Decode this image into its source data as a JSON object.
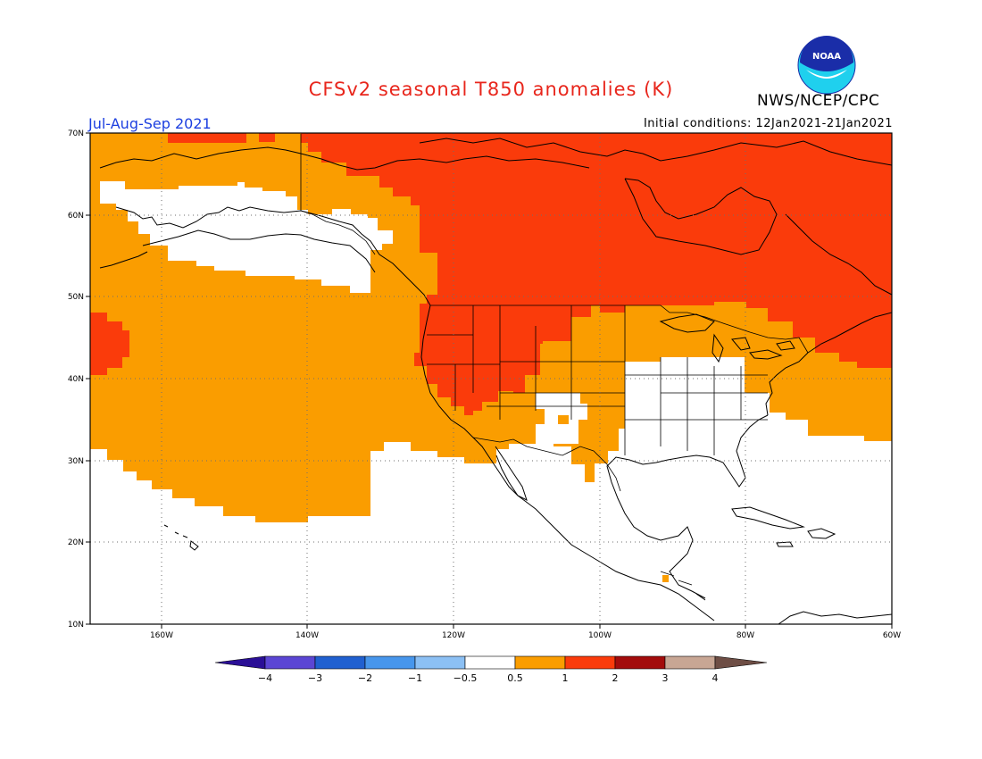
{
  "title": "CFSv2 seasonal T850 anomalies (K)",
  "agency": "NWS/NCEP/CPC",
  "logo_text": "NOAA",
  "season": "Jul-Aug-Sep 2021",
  "initial_conditions": "Initial conditions: 12Jan2021-21Jan2021",
  "lat_labels": [
    "70N",
    "60N",
    "50N",
    "40N",
    "30N",
    "20N",
    "10N"
  ],
  "lon_labels": [
    "160W",
    "140W",
    "120W",
    "100W",
    "80W",
    "60W"
  ],
  "colorbar": {
    "tick_labels": [
      "−4",
      "−3",
      "−2",
      "−1",
      "−0.5",
      "0.5",
      "1",
      "2",
      "3",
      "4"
    ],
    "colors": {
      "below_minus4": "#2a0f96",
      "minus4_minus3": "#5b46d4",
      "minus3_minus2": "#2060d0",
      "minus2_minus1": "#4796ec",
      "minus1_minus05": "#8cc0f4",
      "neutral": "#ffffff",
      "c05_1": "#fa9d00",
      "c1_2": "#fa3b0b",
      "c2_3": "#a30c0c",
      "c3_4": "#c8a694",
      "above_4": "#6e4e45"
    }
  }
}
